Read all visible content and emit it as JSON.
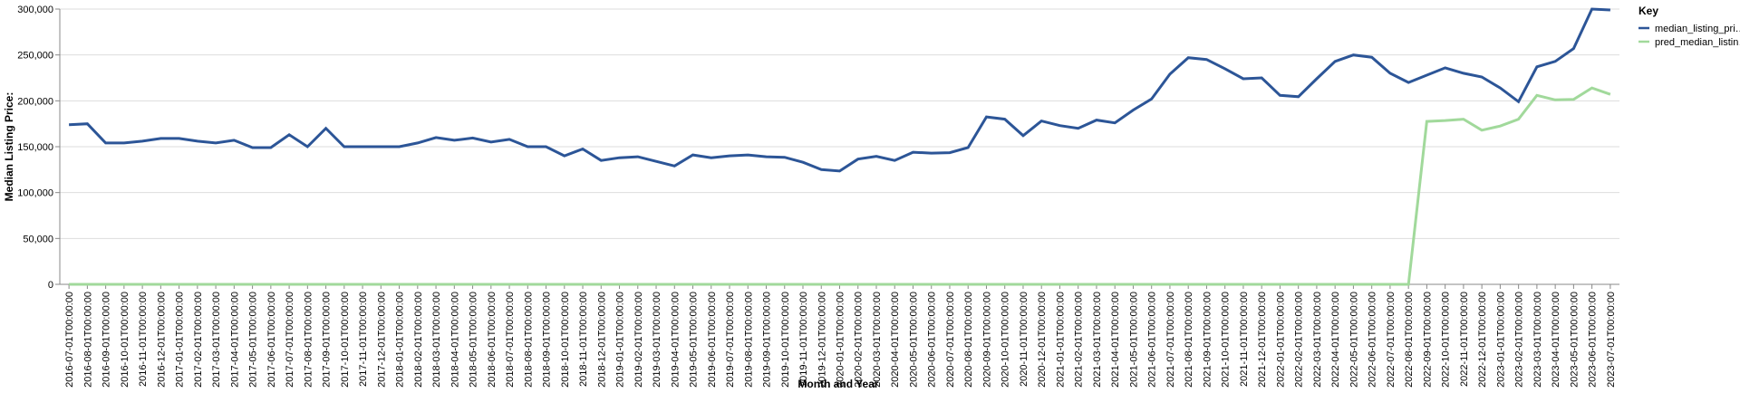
{
  "chart_data": {
    "type": "line",
    "x_label": "Month and Year",
    "y_label": "Median Listing Price:",
    "legend_title": "Key",
    "legend": "top-right",
    "grid": true,
    "categories": [
      "2016-07-01T00:00:00",
      "2016-08-01T00:00:00",
      "2016-09-01T00:00:00",
      "2016-10-01T00:00:00",
      "2016-11-01T00:00:00",
      "2016-12-01T00:00:00",
      "2017-01-01T00:00:00",
      "2017-02-01T00:00:00",
      "2017-03-01T00:00:00",
      "2017-04-01T00:00:00",
      "2017-05-01T00:00:00",
      "2017-06-01T00:00:00",
      "2017-07-01T00:00:00",
      "2017-08-01T00:00:00",
      "2017-09-01T00:00:00",
      "2017-10-01T00:00:00",
      "2017-11-01T00:00:00",
      "2017-12-01T00:00:00",
      "2018-01-01T00:00:00",
      "2018-02-01T00:00:00",
      "2018-03-01T00:00:00",
      "2018-04-01T00:00:00",
      "2018-05-01T00:00:00",
      "2018-06-01T00:00:00",
      "2018-07-01T00:00:00",
      "2018-08-01T00:00:00",
      "2018-09-01T00:00:00",
      "2018-10-01T00:00:00",
      "2018-11-01T00:00:00",
      "2018-12-01T00:00:00",
      "2019-01-01T00:00:00",
      "2019-02-01T00:00:00",
      "2019-03-01T00:00:00",
      "2019-04-01T00:00:00",
      "2019-05-01T00:00:00",
      "2019-06-01T00:00:00",
      "2019-07-01T00:00:00",
      "2019-08-01T00:00:00",
      "2019-09-01T00:00:00",
      "2019-10-01T00:00:00",
      "2019-11-01T00:00:00",
      "2019-12-01T00:00:00",
      "2020-01-01T00:00:00",
      "2020-02-01T00:00:00",
      "2020-03-01T00:00:00",
      "2020-04-01T00:00:00",
      "2020-05-01T00:00:00",
      "2020-06-01T00:00:00",
      "2020-07-01T00:00:00",
      "2020-08-01T00:00:00",
      "2020-09-01T00:00:00",
      "2020-10-01T00:00:00",
      "2020-11-01T00:00:00",
      "2020-12-01T00:00:00",
      "2021-01-01T00:00:00",
      "2021-02-01T00:00:00",
      "2021-03-01T00:00:00",
      "2021-04-01T00:00:00",
      "2021-05-01T00:00:00",
      "2021-06-01T00:00:00",
      "2021-07-01T00:00:00",
      "2021-08-01T00:00:00",
      "2021-09-01T00:00:00",
      "2021-10-01T00:00:00",
      "2021-11-01T00:00:00",
      "2021-12-01T00:00:00",
      "2022-01-01T00:00:00",
      "2022-02-01T00:00:00",
      "2022-03-01T00:00:00",
      "2022-04-01T00:00:00",
      "2022-05-01T00:00:00",
      "2022-06-01T00:00:00",
      "2022-07-01T00:00:00",
      "2022-08-01T00:00:00",
      "2022-09-01T00:00:00",
      "2022-10-01T00:00:00",
      "2022-11-01T00:00:00",
      "2022-12-01T00:00:00",
      "2023-01-01T00:00:00",
      "2023-02-01T00:00:00",
      "2023-03-01T00:00:00",
      "2023-04-01T00:00:00",
      "2023-05-01T00:00:00",
      "2023-06-01T00:00:00",
      "2023-07-01T00:00:00"
    ],
    "series": [
      {
        "name": "median_listing_pri…",
        "color": "#2c5597",
        "values": [
          174000,
          175000,
          154000,
          154000,
          156000,
          159000,
          159000,
          156000,
          154000,
          157000,
          149000,
          149000,
          163000,
          150000,
          170000,
          150000,
          150000,
          150000,
          150000,
          154000,
          160000,
          157000,
          159500,
          155000,
          158000,
          150000,
          150000,
          140000,
          147500,
          135000,
          138000,
          139000,
          134000,
          129000,
          141000,
          138000,
          140000,
          141000,
          139000,
          138500,
          133000,
          125000,
          123500,
          136500,
          139500,
          135000,
          144000,
          143000,
          143500,
          149000,
          182500,
          180000,
          162000,
          178000,
          173000,
          170000,
          179000,
          176000,
          190000,
          202000,
          229000,
          247000,
          245000,
          235000,
          224000,
          225000,
          206000,
          204500,
          224000,
          243000,
          250000,
          247500,
          230000,
          220000,
          228000,
          236000,
          230000,
          226000,
          214000,
          199000,
          237000,
          243000,
          257000,
          300000,
          299000
        ]
      },
      {
        "name": "pred_median_listin…",
        "color": "#a1d99b",
        "values": [
          0,
          0,
          0,
          0,
          0,
          0,
          0,
          0,
          0,
          0,
          0,
          0,
          0,
          0,
          0,
          0,
          0,
          0,
          0,
          0,
          0,
          0,
          0,
          0,
          0,
          0,
          0,
          0,
          0,
          0,
          0,
          0,
          0,
          0,
          0,
          0,
          0,
          0,
          0,
          0,
          0,
          0,
          0,
          0,
          0,
          0,
          0,
          0,
          0,
          0,
          0,
          0,
          0,
          0,
          0,
          0,
          0,
          0,
          0,
          0,
          0,
          0,
          0,
          0,
          0,
          0,
          0,
          0,
          0,
          0,
          0,
          0,
          0,
          0,
          177500,
          178500,
          180000,
          168000,
          172500,
          180000,
          206000,
          201000,
          201500,
          214000,
          207000
        ]
      }
    ],
    "ylim": [
      0,
      300000
    ],
    "yticks": [
      {
        "value": 0,
        "label": "0"
      },
      {
        "value": 50000,
        "label": "50,000"
      },
      {
        "value": 100000,
        "label": "100,000"
      },
      {
        "value": 150000,
        "label": "150,000"
      },
      {
        "value": 200000,
        "label": "200,000"
      },
      {
        "value": 250000,
        "label": "250,000"
      },
      {
        "value": 300000,
        "label": "300,000"
      }
    ]
  }
}
